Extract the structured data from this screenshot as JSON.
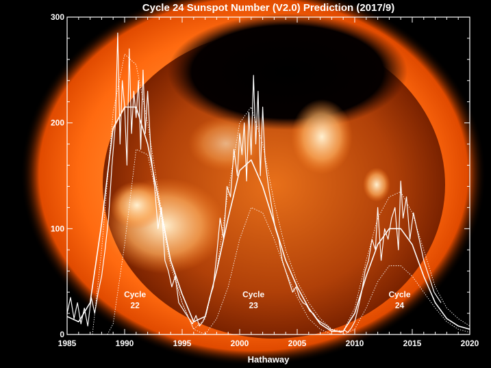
{
  "chart_data": {
    "type": "line",
    "title": "Cycle 24 Sunspot Number (V2.0) Prediction (2017/9)",
    "xlabel": "Hathaway",
    "ylabel": "",
    "xlim": [
      1985,
      2020
    ],
    "ylim": [
      0,
      300
    ],
    "x_ticks": [
      1985,
      1990,
      1995,
      2000,
      2005,
      2010,
      2015,
      2020
    ],
    "y_ticks": [
      0,
      100,
      200,
      300
    ],
    "background_image": "x-ray sun (Yohkoh SXT) behind the plot",
    "colors": {
      "curves": "#ffffff",
      "background": "#000000",
      "sun": "#ff6a10"
    },
    "annotations": [
      {
        "line1": "Cycle",
        "line2": "22",
        "x": 1990.9,
        "y": 30
      },
      {
        "line1": "Cycle",
        "line2": "23",
        "x": 2001.2,
        "y": 30
      },
      {
        "line1": "Cycle",
        "line2": "24",
        "x": 2013.9,
        "y": 30
      }
    ],
    "series": [
      {
        "style": "jagged",
        "x": [
          1985.0,
          1985.3,
          1985.6,
          1985.9,
          1986.2,
          1986.5,
          1986.8,
          1987.1,
          1987.4,
          1987.7,
          1988.0,
          1988.3,
          1988.6,
          1988.9,
          1989.2,
          1989.4,
          1989.6,
          1989.8,
          1990.0,
          1990.2,
          1990.4,
          1990.6,
          1990.8,
          1991.0,
          1991.2,
          1991.4,
          1991.6,
          1991.8,
          1992.0,
          1992.3,
          1992.6,
          1992.9,
          1993.2,
          1993.5,
          1993.8,
          1994.1,
          1994.4,
          1994.7,
          1995.0,
          1995.3,
          1995.6,
          1995.9,
          1996.2,
          1996.5,
          1996.8,
          1997.1,
          1997.4,
          1997.7,
          1998.0,
          1998.3,
          1998.6,
          1998.9,
          1999.2,
          1999.5,
          1999.8,
          2000.0,
          2000.2,
          2000.4,
          2000.6,
          2000.8,
          2001.0,
          2001.2,
          2001.4,
          2001.6,
          2001.8,
          2002.0,
          2002.2,
          2002.5,
          2002.8,
          2003.1,
          2003.4,
          2003.7,
          2004.0,
          2004.3,
          2004.6,
          2004.9,
          2005.2,
          2005.5,
          2005.8,
          2006.1,
          2006.4,
          2006.7,
          2007.0,
          2007.3,
          2007.6,
          2007.9,
          2008.2,
          2008.5,
          2008.8,
          2009.1,
          2009.4,
          2009.7,
          2010.0,
          2010.3,
          2010.6,
          2010.9,
          2011.2,
          2011.5,
          2011.8,
          2012.0,
          2012.3,
          2012.6,
          2012.9,
          2013.2,
          2013.5,
          2013.8,
          2014.0,
          2014.2,
          2014.5,
          2014.8,
          2015.1,
          2015.4,
          2015.7,
          2016.0,
          2016.3,
          2016.6,
          2016.9,
          2017.2,
          2017.5
        ],
        "y": [
          20,
          35,
          15,
          30,
          10,
          25,
          8,
          35,
          20,
          40,
          55,
          80,
          110,
          160,
          200,
          285,
          180,
          240,
          215,
          160,
          270,
          190,
          230,
          205,
          240,
          175,
          250,
          190,
          230,
          170,
          140,
          100,
          120,
          70,
          60,
          45,
          55,
          30,
          25,
          20,
          15,
          10,
          18,
          8,
          12,
          20,
          35,
          45,
          75,
          110,
          90,
          140,
          130,
          175,
          150,
          190,
          170,
          200,
          145,
          210,
          170,
          245,
          180,
          230,
          150,
          215,
          165,
          140,
          120,
          100,
          90,
          70,
          60,
          50,
          40,
          45,
          35,
          30,
          28,
          22,
          20,
          15,
          12,
          10,
          8,
          5,
          4,
          3,
          2,
          4,
          2,
          6,
          12,
          25,
          40,
          60,
          70,
          90,
          80,
          120,
          70,
          100,
          90,
          110,
          120,
          80,
          145,
          110,
          130,
          90,
          115,
          100,
          85,
          70,
          60,
          50,
          40,
          35,
          30
        ]
      },
      {
        "style": "smooth",
        "x": [
          1985,
          1986,
          1987,
          1988,
          1989,
          1990,
          1991,
          1992,
          1993,
          1994,
          1995,
          1996,
          1997,
          1998,
          1999,
          2000,
          2001,
          2002,
          2003,
          2004,
          2005,
          2006,
          2007,
          2008,
          2009,
          2010,
          2011,
          2012,
          2013,
          2014,
          2015,
          2016,
          2017,
          2018,
          2019,
          2020
        ],
        "y": [
          17,
          12,
          30,
          105,
          195,
          215,
          215,
          180,
          125,
          70,
          38,
          12,
          17,
          60,
          110,
          155,
          165,
          140,
          105,
          70,
          45,
          25,
          10,
          3,
          3,
          20,
          55,
          85,
          100,
          100,
          85,
          55,
          30,
          15,
          8,
          5
        ]
      },
      {
        "style": "dotted-upper",
        "x": [
          1987.2,
          1988,
          1989,
          1990,
          1991,
          1992,
          1993,
          1994,
          1995,
          1996,
          1997,
          1998,
          1999,
          2000,
          2001,
          2002,
          2003,
          2004,
          2005,
          2006,
          2007,
          2008,
          2009,
          2010,
          2011,
          2012,
          2013,
          2014,
          2015,
          2016,
          2017,
          2018,
          2019,
          2020
        ],
        "y": [
          0,
          80,
          210,
          265,
          255,
          200,
          130,
          70,
          30,
          5,
          15,
          60,
          135,
          200,
          215,
          180,
          125,
          80,
          50,
          30,
          15,
          5,
          3,
          25,
          70,
          110,
          130,
          135,
          115,
          80,
          45,
          25,
          15,
          8
        ]
      },
      {
        "style": "dotted-lower",
        "x": [
          1988.5,
          1989,
          1990,
          1991,
          1992,
          1993,
          1994,
          1995,
          1996,
          1997,
          1998,
          1999,
          2000,
          2001,
          2002,
          2003,
          2004,
          2005,
          2006,
          2007,
          2008,
          2009,
          2010,
          2011,
          2012,
          2013,
          2014,
          2015,
          2016,
          2017,
          2018,
          2019,
          2020
        ],
        "y": [
          0,
          10,
          85,
          175,
          170,
          120,
          65,
          30,
          5,
          0,
          15,
          45,
          90,
          120,
          115,
          90,
          60,
          35,
          15,
          5,
          0,
          0,
          5,
          25,
          50,
          65,
          65,
          55,
          40,
          25,
          12,
          5,
          2
        ]
      }
    ]
  }
}
